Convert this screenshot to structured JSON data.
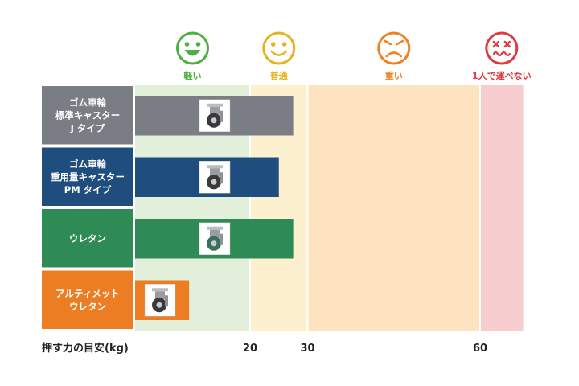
{
  "chart_data": {
    "type": "bar",
    "orientation": "horizontal",
    "x_axis_label": "押す力の目安(kg)",
    "x_ticks": [
      20,
      30,
      60
    ],
    "xlim": [
      0,
      67.5
    ],
    "zones": [
      {
        "label": "軽い",
        "from": 0,
        "to": 20,
        "color": "#e2f0db",
        "accent": "#4caf3f",
        "face": "happy"
      },
      {
        "label": "普通",
        "from": 20,
        "to": 30,
        "color": "#fdf0cf",
        "accent": "#e8b21c",
        "face": "smile"
      },
      {
        "label": "重い",
        "from": 30,
        "to": 60,
        "color": "#fde3bf",
        "accent": "#ee8326",
        "face": "frown"
      },
      {
        "label": "1人で運べない",
        "from": 60,
        "to": 67.5,
        "color": "#f8cdd0",
        "accent": "#e0393e",
        "face": "dizzy"
      }
    ],
    "categories": [
      {
        "label": "ゴム車輪\n標準キャスター\nJ タイプ",
        "value": 27.5,
        "color": "#7a7d83",
        "image": "rubber-caster-icon"
      },
      {
        "label": "ゴム車輪\n重用量キャスター\nPM タイプ",
        "value": 25,
        "color": "#1f4e7e",
        "image": "heavy-caster-icon"
      },
      {
        "label": "ウレタン",
        "value": 27.5,
        "color": "#2e8b55",
        "image": "urethane-caster-icon"
      },
      {
        "label": "アルティメット\nウレタン",
        "value": 9.4,
        "color": "#ec7d22",
        "image": "ultimate-caster-icon"
      }
    ]
  }
}
